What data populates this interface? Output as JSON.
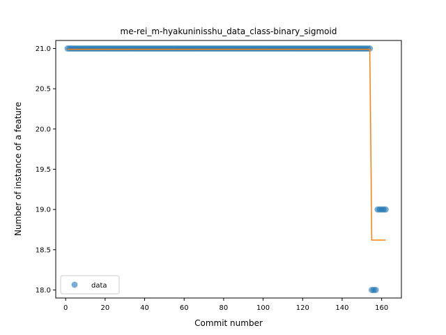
{
  "chart_data": {
    "type": "scatter",
    "title": "me-rei_m-hyakuninisshu_data_class-binary_sigmoid",
    "xlabel": "Commit number",
    "ylabel": "Number of instance of a feature",
    "xlim": [
      -5,
      170
    ],
    "ylim": [
      17.9,
      21.1
    ],
    "xticks": [
      0,
      20,
      40,
      60,
      80,
      100,
      120,
      140,
      160
    ],
    "yticks": [
      18.0,
      18.5,
      19.0,
      19.5,
      20.0,
      20.5,
      21.0
    ],
    "grid": false,
    "legend": {
      "position": "lower-left",
      "entries": [
        "data"
      ]
    },
    "colors": {
      "data": "#1f77b4",
      "fit": "#ff7f0e"
    },
    "series": [
      {
        "name": "data",
        "kind": "scatter",
        "points": [
          [
            1,
            21
          ],
          [
            2,
            21
          ],
          [
            3,
            21
          ],
          [
            4,
            21
          ],
          [
            5,
            21
          ],
          [
            6,
            21
          ],
          [
            7,
            21
          ],
          [
            8,
            21
          ],
          [
            9,
            21
          ],
          [
            10,
            21
          ],
          [
            11,
            21
          ],
          [
            12,
            21
          ],
          [
            13,
            21
          ],
          [
            14,
            21
          ],
          [
            15,
            21
          ],
          [
            16,
            21
          ],
          [
            17,
            21
          ],
          [
            18,
            21
          ],
          [
            19,
            21
          ],
          [
            20,
            21
          ],
          [
            21,
            21
          ],
          [
            22,
            21
          ],
          [
            23,
            21
          ],
          [
            24,
            21
          ],
          [
            25,
            21
          ],
          [
            26,
            21
          ],
          [
            27,
            21
          ],
          [
            28,
            21
          ],
          [
            29,
            21
          ],
          [
            30,
            21
          ],
          [
            31,
            21
          ],
          [
            32,
            21
          ],
          [
            33,
            21
          ],
          [
            34,
            21
          ],
          [
            35,
            21
          ],
          [
            36,
            21
          ],
          [
            37,
            21
          ],
          [
            38,
            21
          ],
          [
            39,
            21
          ],
          [
            40,
            21
          ],
          [
            41,
            21
          ],
          [
            42,
            21
          ],
          [
            43,
            21
          ],
          [
            44,
            21
          ],
          [
            45,
            21
          ],
          [
            46,
            21
          ],
          [
            47,
            21
          ],
          [
            48,
            21
          ],
          [
            49,
            21
          ],
          [
            50,
            21
          ],
          [
            51,
            21
          ],
          [
            52,
            21
          ],
          [
            53,
            21
          ],
          [
            54,
            21
          ],
          [
            55,
            21
          ],
          [
            56,
            21
          ],
          [
            57,
            21
          ],
          [
            58,
            21
          ],
          [
            59,
            21
          ],
          [
            60,
            21
          ],
          [
            61,
            21
          ],
          [
            62,
            21
          ],
          [
            63,
            21
          ],
          [
            64,
            21
          ],
          [
            65,
            21
          ],
          [
            66,
            21
          ],
          [
            67,
            21
          ],
          [
            68,
            21
          ],
          [
            69,
            21
          ],
          [
            70,
            21
          ],
          [
            71,
            21
          ],
          [
            72,
            21
          ],
          [
            73,
            21
          ],
          [
            74,
            21
          ],
          [
            75,
            21
          ],
          [
            76,
            21
          ],
          [
            77,
            21
          ],
          [
            78,
            21
          ],
          [
            79,
            21
          ],
          [
            80,
            21
          ],
          [
            81,
            21
          ],
          [
            82,
            21
          ],
          [
            83,
            21
          ],
          [
            84,
            21
          ],
          [
            85,
            21
          ],
          [
            86,
            21
          ],
          [
            87,
            21
          ],
          [
            88,
            21
          ],
          [
            89,
            21
          ],
          [
            90,
            21
          ],
          [
            91,
            21
          ],
          [
            92,
            21
          ],
          [
            93,
            21
          ],
          [
            94,
            21
          ],
          [
            95,
            21
          ],
          [
            96,
            21
          ],
          [
            97,
            21
          ],
          [
            98,
            21
          ],
          [
            99,
            21
          ],
          [
            100,
            21
          ],
          [
            101,
            21
          ],
          [
            102,
            21
          ],
          [
            103,
            21
          ],
          [
            104,
            21
          ],
          [
            105,
            21
          ],
          [
            106,
            21
          ],
          [
            107,
            21
          ],
          [
            108,
            21
          ],
          [
            109,
            21
          ],
          [
            110,
            21
          ],
          [
            111,
            21
          ],
          [
            112,
            21
          ],
          [
            113,
            21
          ],
          [
            114,
            21
          ],
          [
            115,
            21
          ],
          [
            116,
            21
          ],
          [
            117,
            21
          ],
          [
            118,
            21
          ],
          [
            119,
            21
          ],
          [
            120,
            21
          ],
          [
            121,
            21
          ],
          [
            122,
            21
          ],
          [
            123,
            21
          ],
          [
            124,
            21
          ],
          [
            125,
            21
          ],
          [
            126,
            21
          ],
          [
            127,
            21
          ],
          [
            128,
            21
          ],
          [
            129,
            21
          ],
          [
            130,
            21
          ],
          [
            131,
            21
          ],
          [
            132,
            21
          ],
          [
            133,
            21
          ],
          [
            134,
            21
          ],
          [
            135,
            21
          ],
          [
            136,
            21
          ],
          [
            137,
            21
          ],
          [
            138,
            21
          ],
          [
            139,
            21
          ],
          [
            140,
            21
          ],
          [
            141,
            21
          ],
          [
            142,
            21
          ],
          [
            143,
            21
          ],
          [
            144,
            21
          ],
          [
            145,
            21
          ],
          [
            146,
            21
          ],
          [
            147,
            21
          ],
          [
            148,
            21
          ],
          [
            149,
            21
          ],
          [
            150,
            21
          ],
          [
            151,
            21
          ],
          [
            152,
            21
          ],
          [
            153,
            21
          ],
          [
            154,
            21
          ],
          [
            155,
            18
          ],
          [
            156,
            18
          ],
          [
            157,
            18
          ],
          [
            158,
            19
          ],
          [
            159,
            19
          ],
          [
            160,
            19
          ],
          [
            161,
            19
          ],
          [
            162,
            19
          ]
        ]
      },
      {
        "kind": "step-line",
        "points": [
          [
            1,
            20.99
          ],
          [
            154,
            20.99
          ],
          [
            155,
            18.62
          ],
          [
            162,
            18.62
          ]
        ]
      }
    ]
  }
}
